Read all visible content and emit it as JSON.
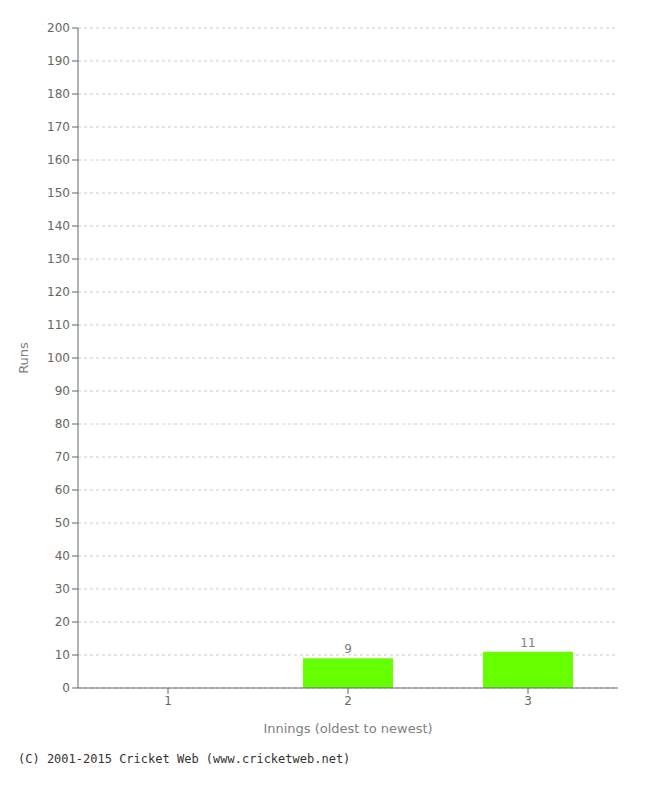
{
  "chart_data": {
    "type": "bar",
    "categories": [
      "1",
      "2",
      "3"
    ],
    "values": [
      0,
      9,
      11
    ],
    "color": "#66ff00",
    "xlabel": "Innings (oldest to newest)",
    "ylabel": "Runs",
    "ylim": [
      0,
      200
    ],
    "yticks": [
      0,
      10,
      20,
      30,
      40,
      50,
      60,
      70,
      80,
      90,
      100,
      110,
      120,
      130,
      140,
      150,
      160,
      170,
      180,
      190,
      200
    ],
    "grid": true,
    "data_labels": true,
    "annotations": [
      "(C) 2001-2015 Cricket Web (www.cricketweb.net)"
    ]
  }
}
